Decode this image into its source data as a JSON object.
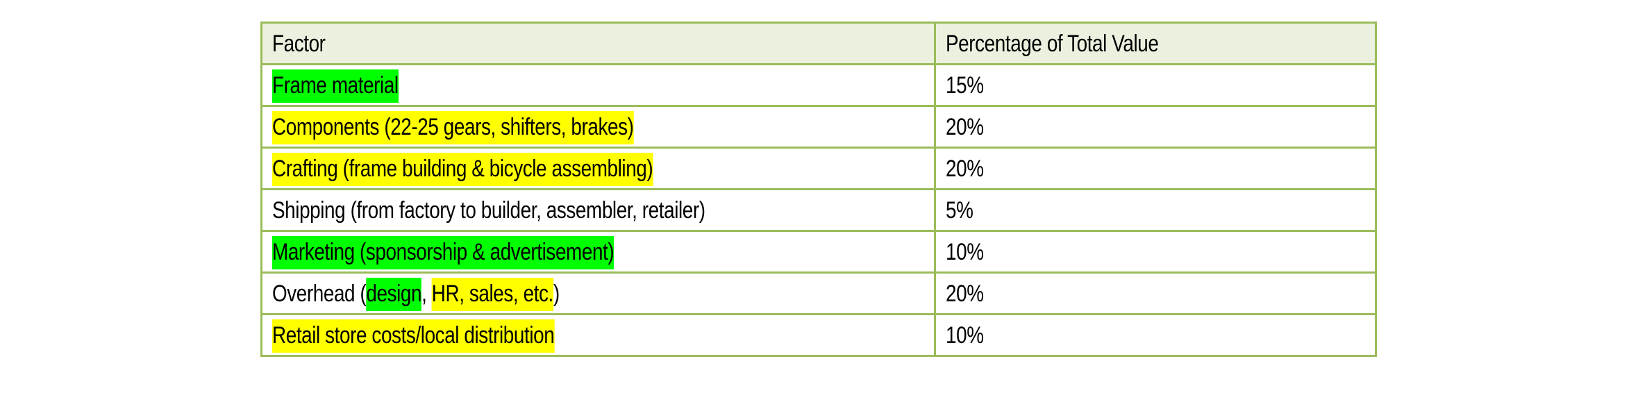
{
  "table": {
    "headers": [
      "Factor",
      "Percentage of Total Value"
    ],
    "highlight_colors": {
      "green": "#00FF00",
      "yellow": "#FFFF00"
    },
    "border_color": "#9BBB59",
    "header_background": "#EBF1DE",
    "rows": [
      {
        "factor": [
          {
            "text": "Frame material",
            "highlight": "green"
          }
        ],
        "percentage": "15%"
      },
      {
        "factor": [
          {
            "text": "Components (22-25 gears, shifters, brakes)",
            "highlight": "yellow"
          }
        ],
        "percentage": "20%"
      },
      {
        "factor": [
          {
            "text": "Crafting (frame building & bicycle assembling)",
            "highlight": "yellow"
          }
        ],
        "percentage": "20%"
      },
      {
        "factor": [
          {
            "text": "Shipping (from factory to builder, assembler, retailer)",
            "highlight": "none"
          }
        ],
        "percentage": "5%"
      },
      {
        "factor": [
          {
            "text": "Marketing (sponsorship & advertisement)",
            "highlight": "green"
          }
        ],
        "percentage": "10%"
      },
      {
        "factor": [
          {
            "text": "Overhead (",
            "highlight": "none"
          },
          {
            "text": "design",
            "highlight": "green"
          },
          {
            "text": ", ",
            "highlight": "none"
          },
          {
            "text": "HR, sales, etc.",
            "highlight": "yellow"
          },
          {
            "text": ")",
            "highlight": "none"
          }
        ],
        "percentage": "20%"
      },
      {
        "factor": [
          {
            "text": "Retail store costs/local distribution",
            "highlight": "yellow"
          }
        ],
        "percentage": "10%"
      }
    ]
  }
}
